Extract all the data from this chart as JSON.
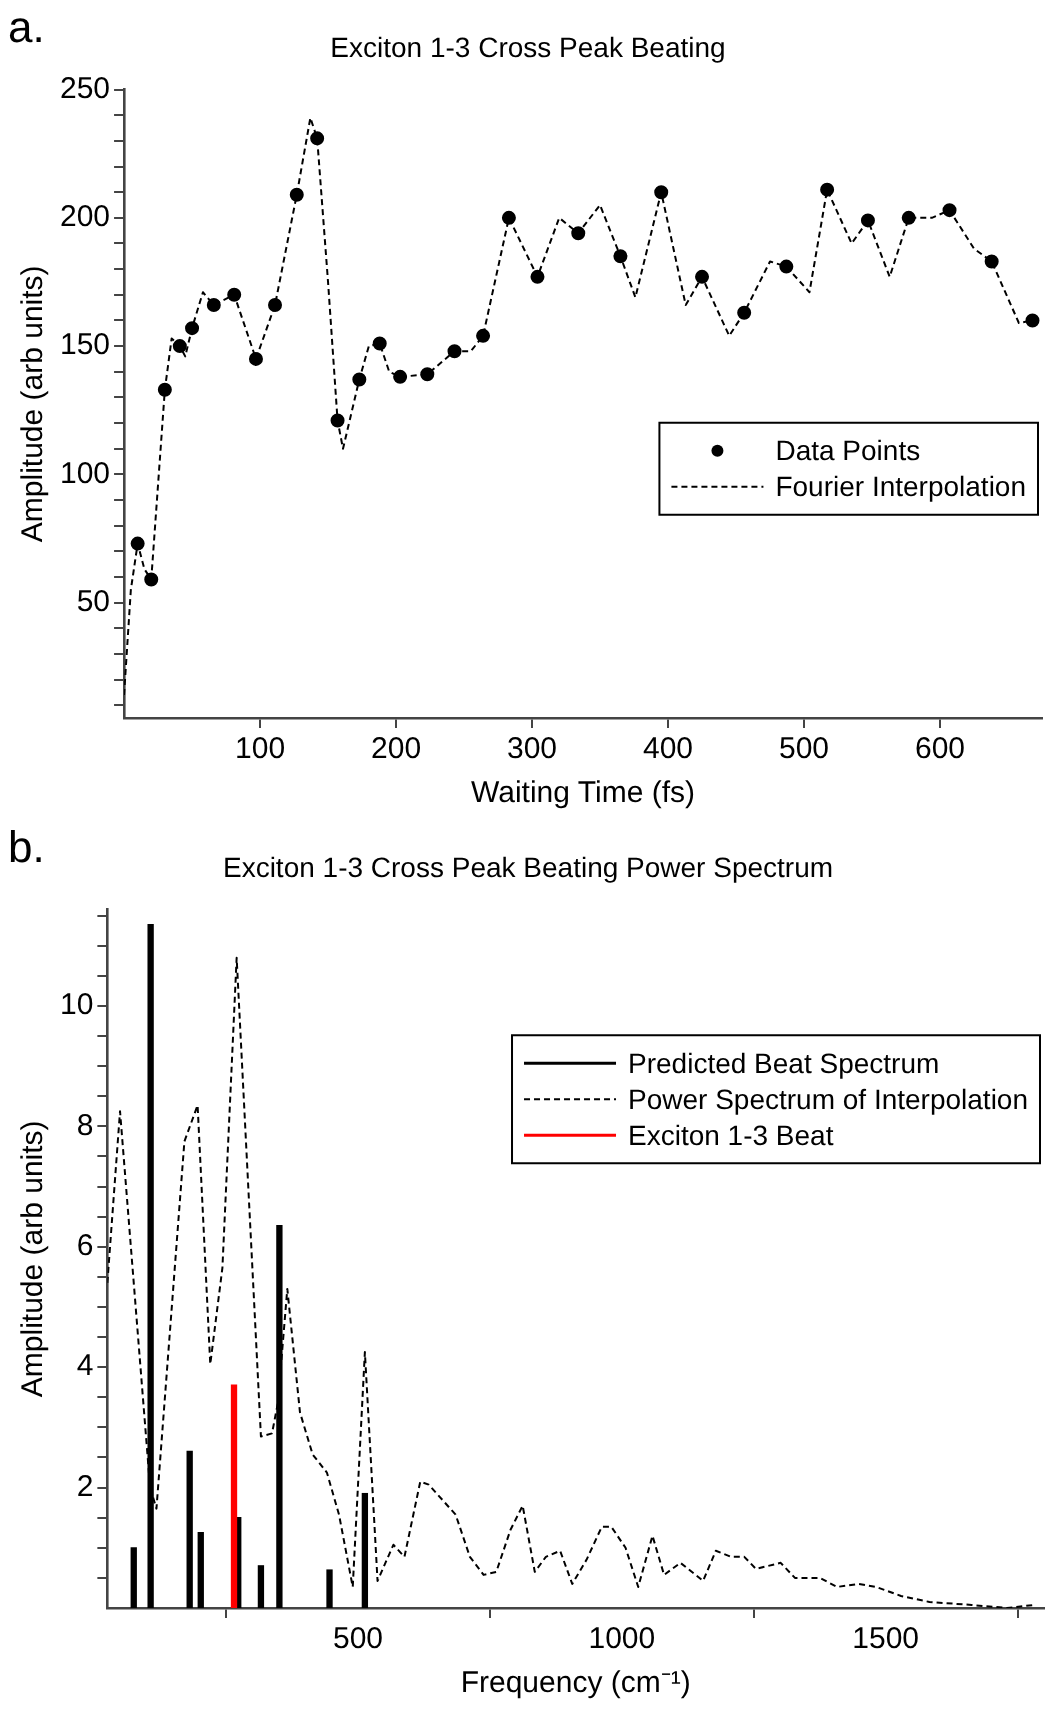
{
  "chart_data": [
    {
      "type": "line",
      "title": "Exciton 1-3 Cross Peak Beating",
      "xlabel": "Waiting Time (fs)",
      "ylabel": "Amplitude (arb units)",
      "annotations": [
        "a."
      ],
      "legend": "right",
      "xlim": [
        0,
        675
      ],
      "ylim": [
        5,
        250
      ],
      "xticks": [
        100,
        200,
        300,
        400,
        500,
        600
      ],
      "yticks": [
        {
          "value": 10,
          "label": null
        },
        {
          "value": 20,
          "label": null
        },
        {
          "value": 30,
          "label": null
        },
        {
          "value": 40,
          "label": null
        },
        50,
        {
          "value": 60,
          "label": null
        },
        {
          "value": 70,
          "label": null
        },
        {
          "value": 80,
          "label": null
        },
        {
          "value": 90,
          "label": null
        },
        100,
        {
          "value": 110,
          "label": null
        },
        {
          "value": 120,
          "label": null
        },
        {
          "value": 130,
          "label": null
        },
        {
          "value": 140,
          "label": null
        },
        150,
        {
          "value": 160,
          "label": null
        },
        {
          "value": 170,
          "label": null
        },
        {
          "value": 180,
          "label": null
        },
        {
          "value": 190,
          "label": null
        },
        200,
        {
          "value": 210,
          "label": null
        },
        {
          "value": 220,
          "label": null
        },
        {
          "value": 230,
          "label": null
        },
        {
          "value": 240,
          "label": null
        },
        250
      ],
      "series": [
        {
          "name": "Data Points",
          "type": "scatter",
          "marker": "circle",
          "color": "#000000",
          "x": [
            10,
            20,
            30,
            41,
            50,
            66,
            81,
            97,
            111,
            127,
            142,
            157,
            173,
            188,
            203,
            223,
            243,
            264,
            283,
            304,
            334,
            365,
            395,
            425,
            456,
            487,
            517,
            547,
            577,
            607,
            638,
            668
          ],
          "values": [
            73,
            59,
            133,
            150,
            157,
            166,
            170,
            145,
            166,
            209,
            231,
            121,
            137,
            151,
            138,
            139,
            148,
            154,
            200,
            177,
            194,
            185,
            210,
            177,
            163,
            181,
            211,
            199,
            200,
            203,
            183,
            160
          ]
        },
        {
          "name": "Fourier Interpolation",
          "type": "line",
          "line_style": "dashed",
          "color": "#000000",
          "x": [
            0,
            5,
            10,
            15,
            20,
            30,
            35,
            41,
            45,
            50,
            58,
            66,
            81,
            97,
            111,
            127,
            137,
            142,
            150,
            157,
            161,
            173,
            180,
            188,
            195,
            203,
            223,
            243,
            255,
            264,
            283,
            304,
            320,
            334,
            350,
            365,
            376,
            395,
            413,
            425,
            445,
            456,
            475,
            487,
            504,
            517,
            535,
            547,
            563,
            577,
            594,
            607,
            625,
            638,
            658,
            668,
            675
          ],
          "values": [
            14,
            55,
            73,
            63,
            59,
            133,
            153,
            150,
            146,
            157,
            171,
            166,
            170,
            145,
            166,
            209,
            239,
            231,
            175,
            121,
            110,
            137,
            150,
            151,
            140,
            138,
            139,
            148,
            148,
            154,
            200,
            177,
            200,
            194,
            205,
            185,
            169,
            210,
            166,
            177,
            154,
            163,
            183,
            181,
            171,
            211,
            190,
            199,
            177,
            200,
            200,
            203,
            188,
            183,
            159,
            160,
            159
          ]
        }
      ]
    },
    {
      "type": "bar",
      "title": "Exciton 1-3 Cross Peak Beating Power Spectrum",
      "xlabel": "Frequency (cm⁻¹)",
      "ylabel": "Amplitude (arb units)",
      "annotations": [
        "b."
      ],
      "legend": "top right",
      "xlim": [
        25,
        1800
      ],
      "ylim": [
        0,
        11.6
      ],
      "xticks": [
        500,
        1000,
        1500
      ],
      "yticks": [
        {
          "value": 0.5,
          "label": null
        },
        {
          "value": 1,
          "label": null
        },
        {
          "value": 1.5,
          "label": null
        },
        2,
        {
          "value": 2.5,
          "label": null
        },
        {
          "value": 3,
          "label": null
        },
        {
          "value": 3.5,
          "label": null
        },
        4,
        {
          "value": 4.5,
          "label": null
        },
        {
          "value": 5,
          "label": null
        },
        {
          "value": 5.5,
          "label": null
        },
        6,
        {
          "value": 6.5,
          "label": null
        },
        {
          "value": 7,
          "label": null
        },
        {
          "value": 7.5,
          "label": null
        },
        8,
        {
          "value": 8.5,
          "label": null
        },
        {
          "value": 9,
          "label": null
        },
        {
          "value": 9.5,
          "label": null
        },
        10,
        {
          "value": 10.5,
          "label": null
        },
        {
          "value": 11,
          "label": null
        },
        {
          "value": 11.5,
          "label": null
        }
      ],
      "series": [
        {
          "name": "Predicted Beat Spectrum",
          "type": "bar",
          "color": "#000000",
          "x": [
            75,
            107,
            181,
            202,
            273,
            316,
            351,
            446,
            513
          ],
          "values": [
            1.0,
            11.35,
            2.6,
            1.25,
            1.5,
            0.7,
            6.35,
            0.63,
            1.9
          ]
        },
        {
          "name": "Power Spectrum of Interpolation",
          "type": "line",
          "line_style": "dashed",
          "color": "#000000",
          "x": [
            25,
            49,
            106,
            118,
            171,
            196,
            220,
            243,
            270,
            316,
            337,
            348,
            366,
            390,
            414,
            441,
            464,
            490,
            513,
            537,
            567,
            588,
            618,
            634,
            685,
            712,
            738,
            762,
            789,
            812,
            835,
            856,
            883,
            906,
            933,
            962,
            980,
            1007,
            1031,
            1058,
            1080,
            1111,
            1154,
            1178,
            1207,
            1232,
            1254,
            1301,
            1328,
            1375,
            1408,
            1449,
            1482,
            1529,
            1583,
            1663,
            1730,
            1781
          ],
          "values": [
            5.4,
            8.25,
            2.0,
            1.65,
            7.75,
            8.35,
            4.05,
            5.65,
            10.8,
            2.85,
            2.9,
            3.4,
            5.3,
            3.25,
            2.55,
            2.25,
            1.55,
            0.35,
            4.25,
            0.45,
            1.05,
            0.85,
            2.1,
            2.05,
            1.55,
            0.85,
            0.55,
            0.6,
            1.3,
            1.7,
            0.6,
            0.85,
            0.95,
            0.4,
            0.8,
            1.35,
            1.35,
            1.0,
            0.35,
            1.2,
            0.55,
            0.75,
            0.45,
            0.95,
            0.85,
            0.85,
            0.65,
            0.75,
            0.5,
            0.5,
            0.35,
            0.4,
            0.35,
            0.2,
            0.1,
            0.05,
            0.0,
            0.05
          ]
        },
        {
          "name": "Exciton 1-3 Beat",
          "type": "bar",
          "color": "#ff0000",
          "x": [
            265
          ],
          "values": [
            3.7
          ]
        }
      ]
    }
  ]
}
